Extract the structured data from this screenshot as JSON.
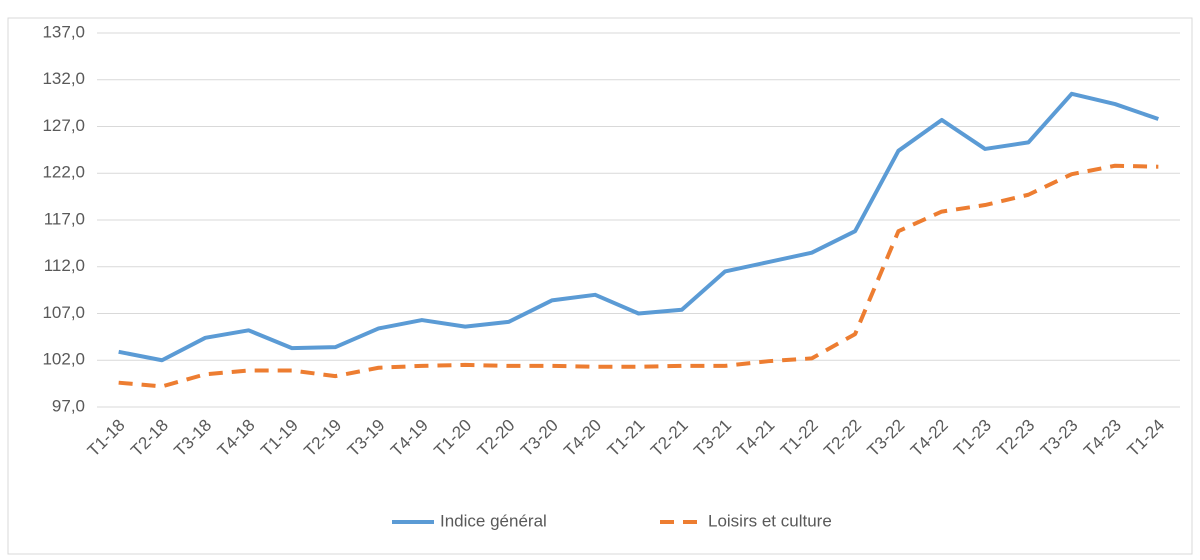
{
  "chart_data": {
    "type": "line",
    "categories": [
      "T1-18",
      "T2-18",
      "T3-18",
      "T4-18",
      "T1-19",
      "T2-19",
      "T3-19",
      "T4-19",
      "T1-20",
      "T2-20",
      "T3-20",
      "T4-20",
      "T1-21",
      "T2-21",
      "T3-21",
      "T4-21",
      "T1-22",
      "T2-22",
      "T3-22",
      "T4-22",
      "T1-23",
      "T2-23",
      "T3-23",
      "T4-23",
      "T1-24"
    ],
    "series": [
      {
        "name": "Indice général",
        "color": "#5b9bd5",
        "style": "solid",
        "values": [
          102.9,
          102.0,
          104.4,
          105.2,
          103.3,
          103.4,
          105.4,
          106.3,
          105.6,
          106.1,
          108.4,
          109.0,
          107.0,
          107.4,
          111.5,
          112.5,
          113.5,
          115.8,
          124.4,
          127.7,
          124.6,
          125.3,
          130.5,
          129.4,
          127.8
        ]
      },
      {
        "name": "Loisirs et culture",
        "color": "#ed7d31",
        "style": "dashed",
        "values": [
          99.6,
          99.2,
          100.5,
          100.9,
          100.9,
          100.3,
          101.2,
          101.4,
          101.5,
          101.4,
          101.4,
          101.3,
          101.3,
          101.4,
          101.4,
          101.9,
          102.2,
          104.8,
          115.8,
          117.9,
          118.6,
          119.7,
          121.9,
          122.8,
          122.7
        ]
      }
    ],
    "ylim": [
      97,
      137
    ],
    "yticks": [
      {
        "value": 97,
        "label": "97,0"
      },
      {
        "value": 102,
        "label": "102,0"
      },
      {
        "value": 107,
        "label": "107,0"
      },
      {
        "value": 112,
        "label": "112,0"
      },
      {
        "value": 117,
        "label": "117,0"
      },
      {
        "value": 122,
        "label": "122,0"
      },
      {
        "value": 127,
        "label": "127,0"
      },
      {
        "value": 132,
        "label": "132,0"
      },
      {
        "value": 137,
        "label": "137,0"
      }
    ],
    "grid": true,
    "legend": "bottom"
  }
}
